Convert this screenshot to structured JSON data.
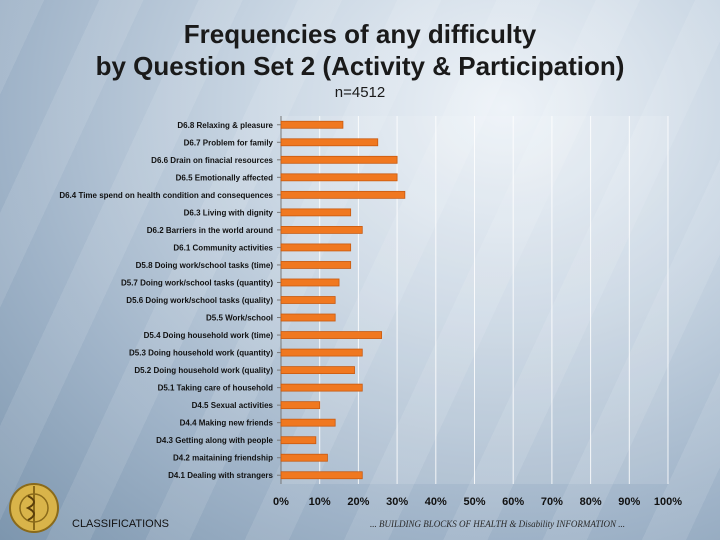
{
  "slide": {
    "title_line1": "Frequencies of any difficulty",
    "title_line2": "by Question Set 2 (Activity & Participation)",
    "subtitle": "n=4512",
    "footer_left": "CLASSIFICATIONS",
    "footer_right": "... BUILDING BLOCKS OF HEALTH & Disability INFORMATION ..."
  },
  "colors": {
    "bar": "#f07820",
    "bar_edge": "#c85a10",
    "grid": "#ffffff",
    "text": "#111111"
  },
  "chart_data": {
    "type": "bar",
    "orientation": "horizontal",
    "title": "Frequencies of any difficulty by Question Set 2 (Activity & Participation)",
    "xlabel": "",
    "ylabel": "",
    "xlim": [
      0,
      100
    ],
    "x_ticks": [
      "0%",
      "10%",
      "20%",
      "30%",
      "40%",
      "50%",
      "60%",
      "70%",
      "80%",
      "90%",
      "100%"
    ],
    "grid": true,
    "categories": [
      "D6.8 Relaxing & pleasure",
      "D6.7 Problem for family",
      "D6.6 Drain on finacial resources",
      "D6.5 Emotionally affected",
      "D6.4 Time spend on health condition and consequences",
      "D6.3 Living with dignity",
      "D6.2 Barriers in the world around",
      "D6.1 Community activities",
      "D5.8 Doing work/school tasks (time)",
      "D5.7 Doing work/school tasks (quantity)",
      "D5.6 Doing work/school tasks (quality)",
      "D5.5 Work/school",
      "D5.4 Doing household work (time)",
      "D5.3 Doing household work (quantity)",
      "D5.2 Doing household work (quality)",
      "D5.1 Taking care of household",
      "D4.5 Sexual activities",
      "D4.4 Making new friends",
      "D4.3 Getting along with people",
      "D4.2 maitaining friendship",
      "D4.1 Dealing with strangers"
    ],
    "values": [
      16,
      25,
      30,
      30,
      32,
      18,
      21,
      18,
      18,
      15,
      14,
      14,
      26,
      21,
      19,
      21,
      10,
      14,
      9,
      12,
      21
    ]
  }
}
